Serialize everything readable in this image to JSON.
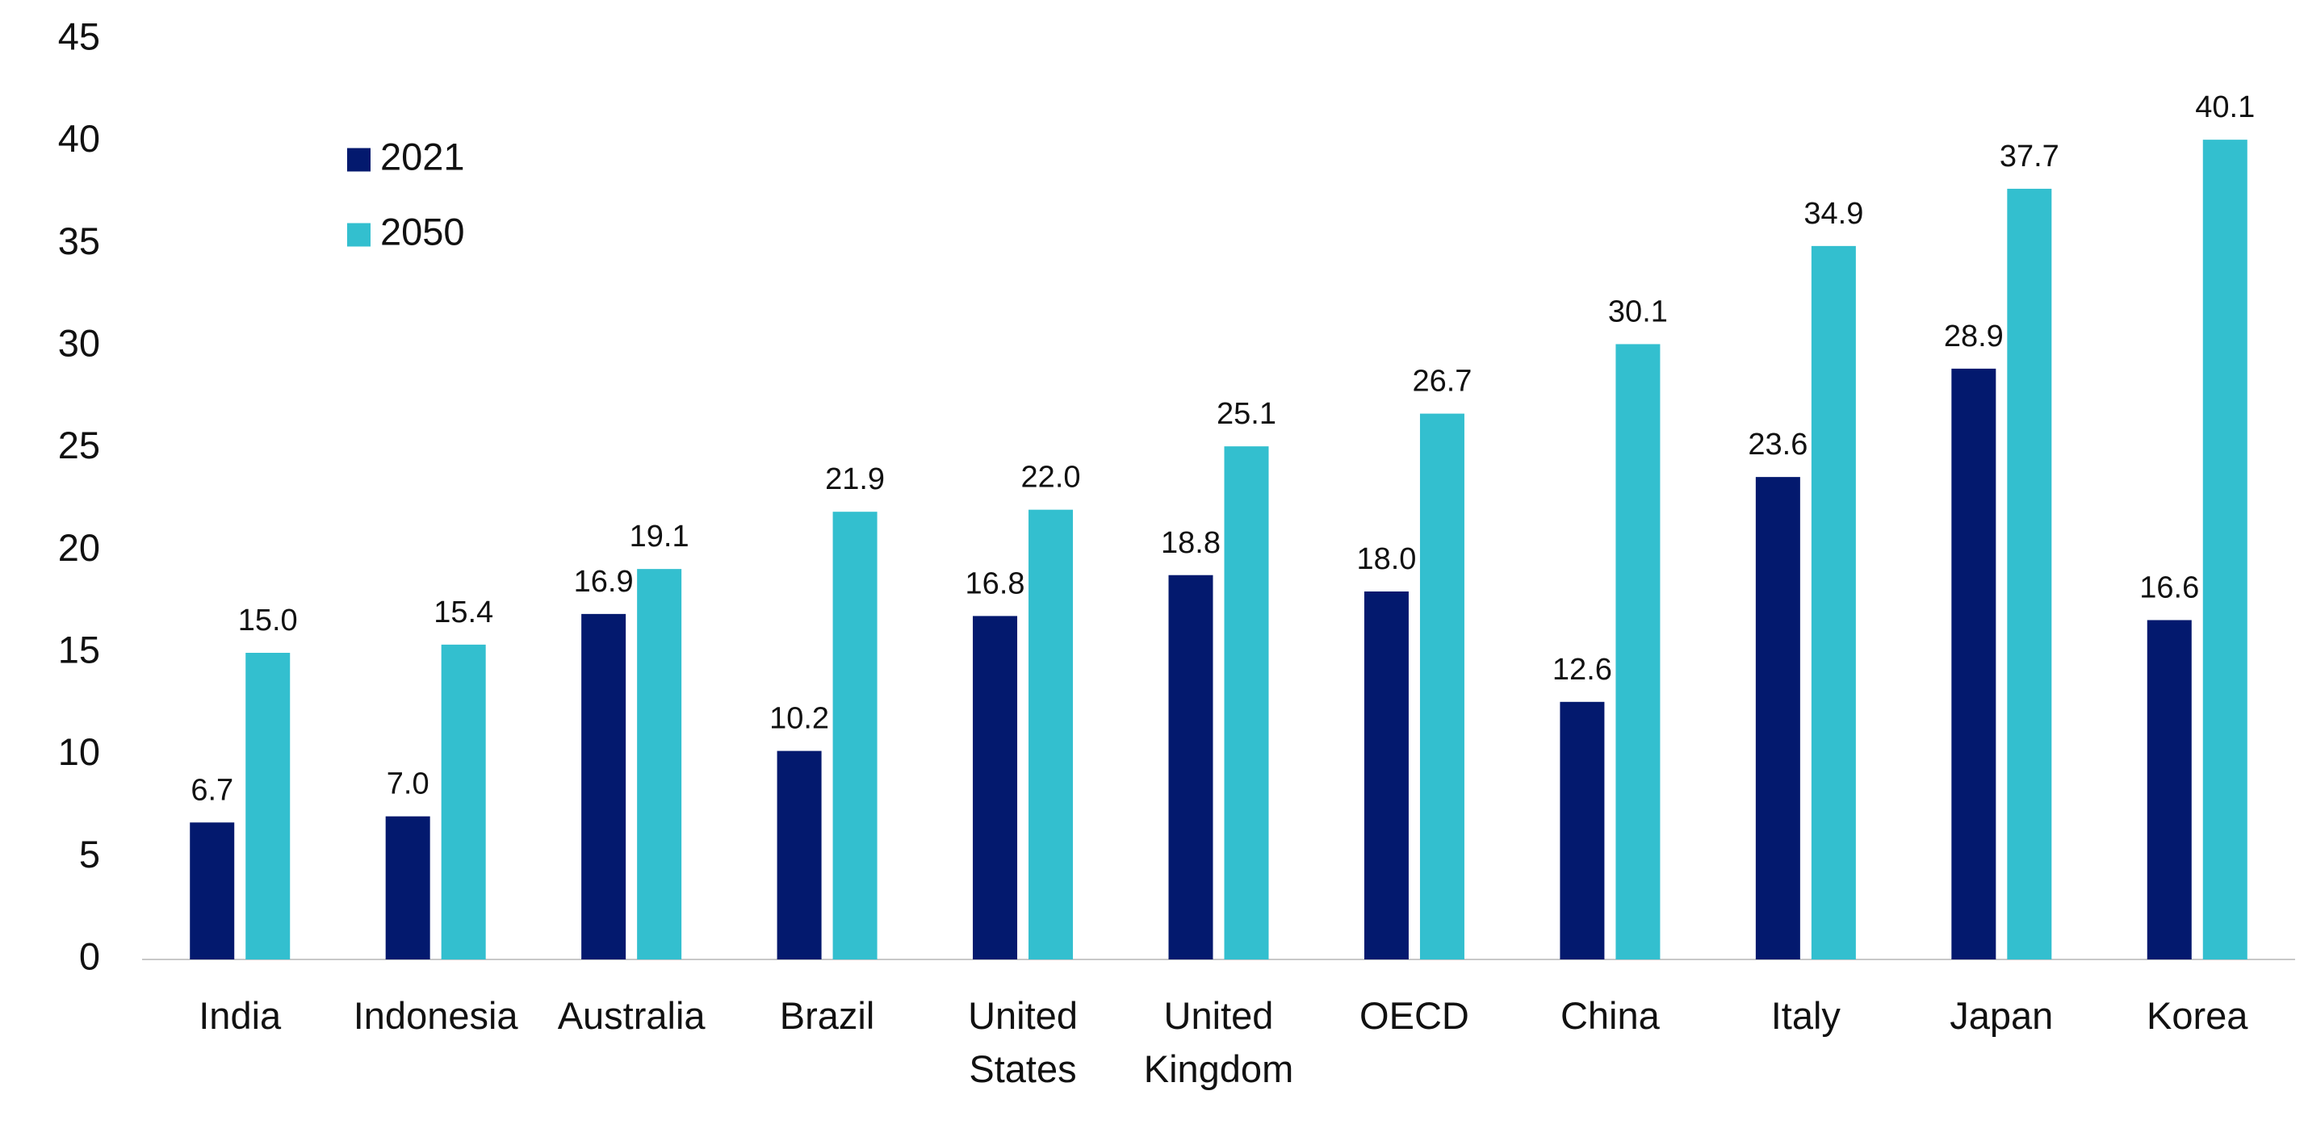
{
  "chart_data": {
    "type": "bar",
    "categories": [
      "India",
      "Indonesia",
      "Australia",
      "Brazil",
      "United States",
      "United Kingdom",
      "OECD",
      "China",
      "Italy",
      "Japan",
      "Korea"
    ],
    "series": [
      {
        "name": "2021",
        "color": "#03196e",
        "values": [
          6.7,
          7.0,
          16.9,
          10.2,
          16.8,
          18.8,
          18.0,
          12.6,
          23.6,
          28.9,
          16.6
        ],
        "value_labels": [
          "6.7",
          "7.0",
          "16.9",
          "10.2",
          "16.8",
          "18.8",
          "18.0",
          "12.6",
          "23.6",
          "28.9",
          "16.6"
        ]
      },
      {
        "name": "2050",
        "color": "#33bfcf",
        "values": [
          15.0,
          15.4,
          19.1,
          21.9,
          22.0,
          25.1,
          26.7,
          30.1,
          34.9,
          37.7,
          40.1
        ],
        "value_labels": [
          "15.0",
          "15.4",
          "19.1",
          "21.9",
          "22.0",
          "25.1",
          "26.7",
          "30.1",
          "34.9",
          "37.7",
          "40.1"
        ]
      }
    ],
    "ylim": [
      0,
      45
    ],
    "yticks": [
      0,
      5,
      10,
      15,
      20,
      25,
      30,
      35,
      40,
      45
    ],
    "grid": false,
    "legend": "top-left"
  }
}
